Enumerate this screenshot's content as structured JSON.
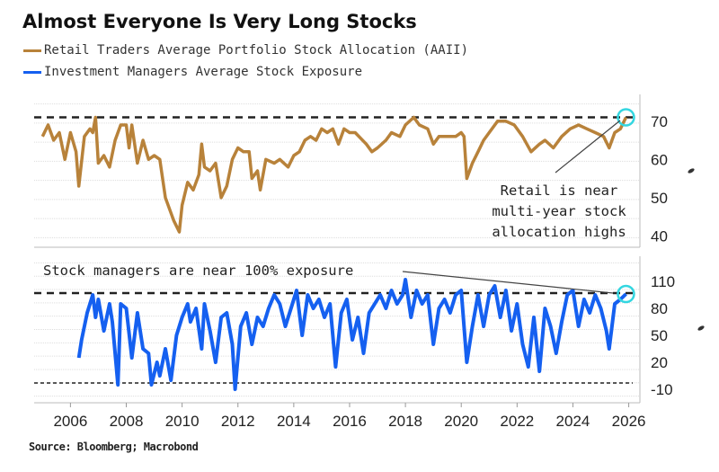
{
  "title": "Almost Everyone Is Very Long Stocks",
  "source": "Source: Bloomberg; Macrobond",
  "colors": {
    "retail": "#b8823a",
    "managers": "#1560f0",
    "highlight": "#33d6e0"
  },
  "chart_data": [
    {
      "type": "line",
      "legend": "Retail Traders Average Portfolio Stock Allocation (AAII)",
      "legend_placement": "top-left",
      "grid": true,
      "y_axis_side": "right",
      "ylim": [
        37,
        77
      ],
      "yticks": [
        70,
        60,
        50,
        40
      ],
      "xlim": [
        2004.7,
        2026.4
      ],
      "reference_line": 71,
      "annotation": [
        "Retail is near",
        "multi-year stock",
        "allocation highs"
      ],
      "x": [
        2005.0,
        2005.2,
        2005.4,
        2005.6,
        2005.8,
        2006.0,
        2006.2,
        2006.3,
        2006.5,
        2006.7,
        2006.8,
        2006.9,
        2007.0,
        2007.2,
        2007.4,
        2007.6,
        2007.8,
        2008.0,
        2008.1,
        2008.2,
        2008.4,
        2008.6,
        2008.8,
        2009.0,
        2009.2,
        2009.4,
        2009.6,
        2009.7,
        2009.9,
        2010.0,
        2010.2,
        2010.4,
        2010.6,
        2010.7,
        2010.8,
        2011.0,
        2011.2,
        2011.4,
        2011.6,
        2011.8,
        2012.0,
        2012.2,
        2012.4,
        2012.5,
        2012.7,
        2012.8,
        2013.0,
        2013.3,
        2013.5,
        2013.8,
        2014.0,
        2014.2,
        2014.4,
        2014.6,
        2014.8,
        2015.0,
        2015.2,
        2015.4,
        2015.6,
        2015.8,
        2016.0,
        2016.2,
        2016.6,
        2016.8,
        2017.0,
        2017.3,
        2017.5,
        2017.8,
        2018.0,
        2018.3,
        2018.5,
        2018.8,
        2019.0,
        2019.2,
        2019.5,
        2019.8,
        2020.0,
        2020.1,
        2020.2,
        2020.4,
        2020.6,
        2020.8,
        2021.0,
        2021.3,
        2021.6,
        2021.9,
        2022.2,
        2022.5,
        2022.8,
        2023.0,
        2023.3,
        2023.6,
        2023.9,
        2024.2,
        2024.5,
        2024.8,
        2025.1,
        2025.3,
        2025.5,
        2025.7,
        2025.9
      ],
      "values": [
        66,
        69,
        65,
        67,
        60,
        67,
        62,
        53,
        66,
        68,
        67,
        71,
        59,
        61,
        58,
        65,
        69,
        69,
        63,
        69,
        59,
        65,
        60,
        61,
        60,
        50,
        46,
        44,
        41,
        48,
        54,
        52,
        56,
        64,
        58,
        57,
        59,
        50,
        53,
        60,
        63,
        62,
        62,
        55,
        57,
        52,
        60,
        59,
        60,
        58,
        61,
        62,
        65,
        66,
        65,
        68,
        67,
        68,
        64,
        68,
        67,
        67,
        64,
        62,
        63,
        65,
        67,
        66,
        69,
        71,
        69,
        68,
        64,
        66,
        66,
        66,
        67,
        66,
        55,
        59,
        62,
        65,
        67,
        70,
        70,
        69,
        66,
        62,
        64,
        65,
        63,
        66,
        68,
        69,
        68,
        67,
        66,
        63,
        67,
        68,
        71
      ]
    },
    {
      "type": "line",
      "legend": "Investment Managers Average Stock Exposure",
      "legend_placement": "top-left",
      "grid": true,
      "y_axis_side": "right",
      "ylim": [
        -25,
        138
      ],
      "yticks": [
        110,
        80,
        50,
        20,
        -10
      ],
      "xlim": [
        2004.7,
        2026.4
      ],
      "reference_lines": [
        97,
        -3
      ],
      "annotation": "Stock managers are near 100% exposure",
      "x": [
        2006.3,
        2006.4,
        2006.6,
        2006.8,
        2006.9,
        2007.0,
        2007.2,
        2007.4,
        2007.5,
        2007.7,
        2007.8,
        2008.0,
        2008.2,
        2008.4,
        2008.6,
        2008.8,
        2008.9,
        2009.1,
        2009.2,
        2009.4,
        2009.6,
        2009.8,
        2010.0,
        2010.2,
        2010.3,
        2010.5,
        2010.7,
        2010.8,
        2011.0,
        2011.2,
        2011.4,
        2011.6,
        2011.8,
        2011.9,
        2012.1,
        2012.3,
        2012.5,
        2012.7,
        2012.9,
        2013.1,
        2013.3,
        2013.5,
        2013.7,
        2013.9,
        2014.1,
        2014.3,
        2014.5,
        2014.7,
        2014.9,
        2015.1,
        2015.3,
        2015.5,
        2015.7,
        2015.9,
        2016.1,
        2016.3,
        2016.5,
        2016.7,
        2016.9,
        2017.1,
        2017.3,
        2017.5,
        2017.7,
        2017.9,
        2018.0,
        2018.2,
        2018.4,
        2018.6,
        2018.8,
        2019.0,
        2019.2,
        2019.4,
        2019.6,
        2019.8,
        2020.0,
        2020.2,
        2020.4,
        2020.6,
        2020.8,
        2021.0,
        2021.2,
        2021.4,
        2021.6,
        2021.8,
        2022.0,
        2022.2,
        2022.4,
        2022.6,
        2022.8,
        2023.0,
        2023.2,
        2023.4,
        2023.6,
        2023.8,
        2024.0,
        2024.2,
        2024.4,
        2024.6,
        2024.8,
        2025.0,
        2025.2,
        2025.3,
        2025.5,
        2025.7,
        2025.9
      ],
      "values": [
        25,
        45,
        75,
        95,
        70,
        90,
        55,
        85,
        65,
        -5,
        85,
        80,
        25,
        75,
        35,
        30,
        -5,
        20,
        5,
        35,
        0,
        50,
        70,
        85,
        65,
        80,
        35,
        85,
        55,
        20,
        70,
        75,
        40,
        -10,
        60,
        75,
        40,
        70,
        60,
        80,
        95,
        85,
        60,
        80,
        100,
        50,
        95,
        80,
        90,
        70,
        85,
        15,
        75,
        90,
        45,
        70,
        30,
        75,
        85,
        95,
        80,
        100,
        85,
        95,
        112,
        70,
        100,
        85,
        95,
        40,
        80,
        90,
        75,
        95,
        100,
        20,
        60,
        95,
        60,
        95,
        105,
        70,
        100,
        55,
        85,
        40,
        15,
        70,
        10,
        80,
        60,
        30,
        65,
        95,
        100,
        60,
        90,
        75,
        95,
        80,
        55,
        35,
        85,
        90,
        96
      ]
    },
    {
      "type": "axis",
      "xticks": [
        "2006",
        "2008",
        "2010",
        "2012",
        "2014",
        "2016",
        "2018",
        "2020",
        "2022",
        "2024",
        "2026"
      ]
    }
  ]
}
